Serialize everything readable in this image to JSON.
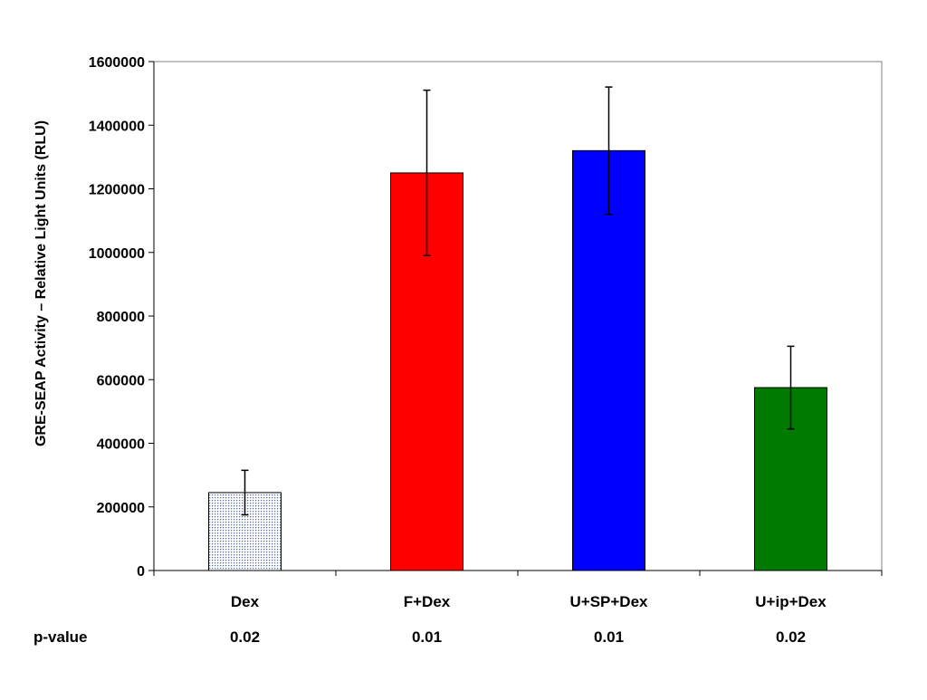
{
  "chart_data": {
    "type": "bar",
    "title": "",
    "xlabel": "",
    "ylabel": "GRE-SEAP Activity – Relative Light Units (RLU)",
    "ylim": [
      0,
      1600000
    ],
    "yticks": [
      0,
      200000,
      400000,
      600000,
      800000,
      1000000,
      1200000,
      1400000,
      1600000
    ],
    "grid": false,
    "legend": "none",
    "categories": [
      "Dex",
      "F+Dex",
      "U+SP+Dex",
      "U+ip+Dex"
    ],
    "values": [
      245000,
      1250000,
      1320000,
      575000
    ],
    "errors": [
      70000,
      260000,
      200000,
      130000
    ],
    "bar_colors": [
      "#dfe6f4",
      "#ff0000",
      "#0000ff",
      "#007a00"
    ],
    "bar_patterns": [
      "dotted",
      "solid",
      "solid",
      "solid"
    ],
    "pvalue_label": "p-value",
    "pvalues": [
      "0.02",
      "0.01",
      "0.01",
      "0.02"
    ]
  }
}
